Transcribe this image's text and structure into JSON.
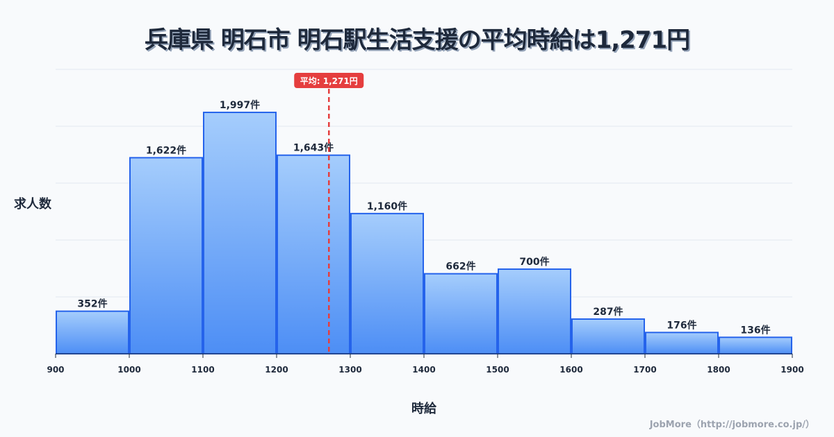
{
  "title": "兵庫県 明石市 明石駅生活支援の平均時給は1,271円",
  "credit": "JobMore（http://jobmore.co.jp/）",
  "colors": {
    "bar_top": "#a5cdfc",
    "bar_bottom": "#4d8ef5",
    "bar_stroke": "#2563eb",
    "mean_line": "#e53e3e",
    "grid": "#e2e8f0"
  },
  "chart_data": {
    "type": "bar",
    "title": "兵庫県 明石市 明石駅生活支援の平均時給は1,271円",
    "xlabel": "時給",
    "ylabel": "求人数",
    "bin_edges": [
      900,
      1000,
      1100,
      1200,
      1300,
      1400,
      1500,
      1600,
      1700,
      1800,
      1900
    ],
    "categories": [
      "900-1000",
      "1000-1100",
      "1100-1200",
      "1200-1300",
      "1300-1400",
      "1400-1500",
      "1500-1600",
      "1600-1700",
      "1700-1800",
      "1800-1900"
    ],
    "values": [
      352,
      1622,
      1997,
      1643,
      1160,
      662,
      700,
      287,
      176,
      136
    ],
    "value_labels": [
      "352件",
      "1,622件",
      "1,997件",
      "1,643件",
      "1,160件",
      "662件",
      "700件",
      "287件",
      "176件",
      "136件"
    ],
    "xticks": [
      "900",
      "1000",
      "1100",
      "1200",
      "1300",
      "1400",
      "1500",
      "1600",
      "1700",
      "1800",
      "1900"
    ],
    "mean": 1271,
    "mean_label": "平均: 1,271円",
    "ylim": [
      0,
      2353
    ],
    "grid": true
  }
}
